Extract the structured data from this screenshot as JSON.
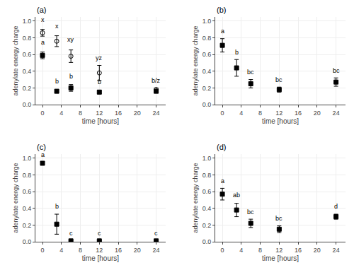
{
  "chart_data": [
    {
      "type": "scatter",
      "title": "(a)",
      "x_label": "time [hours]",
      "y_label": "adenylate energy charge",
      "xlim": [
        -1.5,
        26
      ],
      "ylim": [
        0,
        1.05
      ],
      "xticks": [
        0,
        4,
        8,
        12,
        16,
        20,
        24
      ],
      "yticks": [
        {
          "value": 0.0,
          "label": "0.0"
        },
        0.2,
        0.4,
        0.6,
        0.8,
        {
          "value": 1.0,
          "label": "1.0"
        }
      ],
      "series": [
        {
          "x": [
            0,
            3,
            6,
            12,
            24
          ],
          "values": [
            0.86,
            0.76,
            0.58,
            0.38,
            0.18
          ],
          "error": [
            0.04,
            0.065,
            0.075,
            0.09,
            0.02
          ],
          "marker": "circle-open",
          "color": "#000000"
        },
        {
          "x": [
            0,
            3,
            6,
            12,
            24
          ],
          "values": [
            0.59,
            0.16,
            0.2,
            0.15,
            0.16
          ],
          "error": [
            0.04,
            0.02,
            0.04,
            0.02,
            0.02
          ],
          "marker": "square",
          "color": "#000000"
        }
      ],
      "annotations": [
        {
          "x": 0,
          "y": 0.96,
          "text": "x"
        },
        {
          "x": 3,
          "y": 0.88,
          "text": "x"
        },
        {
          "x": 6,
          "y": 0.72,
          "text": "xy"
        },
        {
          "x": 12,
          "y": 0.5,
          "text": "yz"
        },
        {
          "x": 24,
          "y": 0.23,
          "text": "b/z"
        },
        {
          "x": 0,
          "y": 0.69,
          "text": "a"
        },
        {
          "x": 3,
          "y": 0.22,
          "text": "b"
        },
        {
          "x": 6,
          "y": 0.28,
          "text": "b"
        },
        {
          "x": 12,
          "y": 0.21,
          "text": "b"
        }
      ]
    },
    {
      "type": "scatter",
      "title": "(b)",
      "x_label": "time [hours]",
      "y_label": "adenylate energy charge",
      "xlim": [
        -1.5,
        26
      ],
      "ylim": [
        0,
        1.05
      ],
      "xticks": [
        0,
        4,
        8,
        12,
        16,
        20,
        24
      ],
      "yticks": [
        {
          "value": 0.0,
          "label": "0.0"
        },
        0.2,
        0.4,
        0.6,
        0.8,
        {
          "value": 1.0,
          "label": "1.0"
        }
      ],
      "series": [
        {
          "x": [
            0,
            3,
            6,
            12,
            24
          ],
          "values": [
            0.71,
            0.44,
            0.25,
            0.18,
            0.27
          ],
          "error": [
            0.08,
            0.1,
            0.05,
            0.03,
            0.05
          ],
          "marker": "square",
          "color": "#000000"
        }
      ],
      "annotations": [
        {
          "x": 0,
          "y": 0.82,
          "text": "a"
        },
        {
          "x": 3,
          "y": 0.57,
          "text": "b"
        },
        {
          "x": 6,
          "y": 0.33,
          "text": "bc"
        },
        {
          "x": 12,
          "y": 0.24,
          "text": "bc"
        },
        {
          "x": 24,
          "y": 0.35,
          "text": "bc"
        }
      ]
    },
    {
      "type": "scatter",
      "title": "(c)",
      "x_label": "time [hours]",
      "y_label": "adenylate energy charge",
      "xlim": [
        -1.5,
        26
      ],
      "ylim": [
        0,
        1.05
      ],
      "xticks": [
        0,
        4,
        8,
        12,
        16,
        20,
        24
      ],
      "yticks": [
        {
          "value": 0.0,
          "label": "0.0"
        },
        0.2,
        0.4,
        0.6,
        0.8,
        {
          "value": 1.0,
          "label": "1.0"
        }
      ],
      "series": [
        {
          "x": [
            0,
            3,
            6,
            12,
            24
          ],
          "values": [
            0.94,
            0.21,
            0.01,
            0.01,
            0.01
          ],
          "error": [
            0.02,
            0.12,
            0.005,
            0.005,
            0.005
          ],
          "marker": "square",
          "color": "#000000"
        }
      ],
      "annotations": [
        {
          "x": 0,
          "y": 0.98,
          "text": "a"
        },
        {
          "x": 3,
          "y": 0.36,
          "text": "b"
        },
        {
          "x": 6,
          "y": 0.04,
          "text": "c"
        },
        {
          "x": 12,
          "y": 0.04,
          "text": "c"
        },
        {
          "x": 24,
          "y": 0.04,
          "text": "c"
        }
      ]
    },
    {
      "type": "scatter",
      "title": "(d)",
      "x_label": "time [hours]",
      "y_label": "adenylate energy charge",
      "xlim": [
        -1.5,
        26
      ],
      "ylim": [
        0,
        1.05
      ],
      "xticks": [
        0,
        4,
        8,
        12,
        16,
        20,
        24
      ],
      "yticks": [
        {
          "value": 0.0,
          "label": "0.0"
        },
        0.2,
        0.4,
        0.6,
        0.8,
        {
          "value": 1.0,
          "label": "1.0"
        }
      ],
      "series": [
        {
          "x": [
            0,
            3,
            6,
            12,
            24
          ],
          "values": [
            0.57,
            0.38,
            0.22,
            0.15,
            0.3
          ],
          "error": [
            0.07,
            0.08,
            0.05,
            0.04,
            0.03
          ],
          "marker": "square",
          "color": "#000000"
        }
      ],
      "annotations": [
        {
          "x": 0,
          "y": 0.67,
          "text": "a"
        },
        {
          "x": 3,
          "y": 0.5,
          "text": "ab"
        },
        {
          "x": 6,
          "y": 0.3,
          "text": "bc"
        },
        {
          "x": 12,
          "y": 0.22,
          "text": "bc"
        },
        {
          "x": 24,
          "y": 0.36,
          "text": "d"
        }
      ]
    }
  ]
}
